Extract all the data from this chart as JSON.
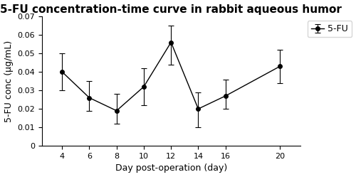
{
  "title": "5-FU concentration-time curve in rabbit aqueous humor",
  "xlabel": "Day post-operation (day)",
  "ylabel": "5-FU conc (μg/mL)",
  "x": [
    4,
    6,
    8,
    10,
    12,
    14,
    16,
    20
  ],
  "y": [
    0.04,
    0.026,
    0.019,
    0.032,
    0.056,
    0.02,
    0.027,
    0.043
  ],
  "yerr_upper": [
    0.01,
    0.009,
    0.009,
    0.01,
    0.009,
    0.009,
    0.009,
    0.009
  ],
  "yerr_lower": [
    0.01,
    0.007,
    0.007,
    0.01,
    0.012,
    0.01,
    0.007,
    0.009
  ],
  "ylim": [
    0,
    0.07
  ],
  "yticks": [
    0,
    0.01,
    0.02,
    0.03,
    0.04,
    0.05,
    0.06,
    0.07
  ],
  "xticks": [
    4,
    6,
    8,
    10,
    12,
    14,
    16,
    20
  ],
  "legend_label": "5-FU",
  "line_color": "#000000",
  "marker": "o",
  "marker_size": 4,
  "title_fontsize": 11,
  "label_fontsize": 9,
  "tick_fontsize": 8,
  "legend_fontsize": 9
}
